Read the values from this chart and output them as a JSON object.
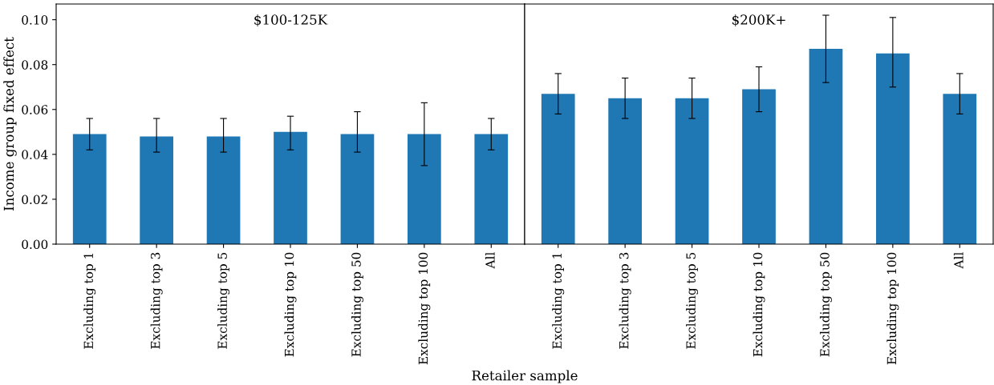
{
  "chart_data": [
    {
      "type": "bar",
      "title": "$100-125K",
      "xlabel": "Retailer sample",
      "ylabel": "Income group fixed effect",
      "categories": [
        "Excluding top 1",
        "Excluding top 3",
        "Excluding top 5",
        "Excluding top 10",
        "Excluding top 50",
        "Excluding top 100",
        "All"
      ],
      "series": [
        {
          "color": "#1f77b4",
          "values": [
            0.049,
            0.048,
            0.048,
            0.05,
            0.049,
            0.049,
            0.049
          ],
          "errors": [
            [
              0.042,
              0.056
            ],
            [
              0.041,
              0.056
            ],
            [
              0.041,
              0.056
            ],
            [
              0.042,
              0.057
            ],
            [
              0.041,
              0.059
            ],
            [
              0.035,
              0.063
            ],
            [
              0.042,
              0.056
            ]
          ]
        }
      ],
      "ylim": [
        0,
        0.107
      ],
      "yticks": [
        {
          "value": 0,
          "label": "0.00"
        },
        {
          "value": 0.02,
          "label": "0.02"
        },
        {
          "value": 0.04,
          "label": "0.04"
        },
        {
          "value": 0.06,
          "label": "0.06"
        },
        {
          "value": 0.08,
          "label": "0.08"
        },
        {
          "value": 0.1,
          "label": "0.10"
        }
      ],
      "grid": false,
      "legend": false
    },
    {
      "type": "bar",
      "title": "$200K+",
      "categories": [
        "Excluding top 1",
        "Excluding top 3",
        "Excluding top 5",
        "Excluding top 10",
        "Excluding top 50",
        "Excluding top 100",
        "All"
      ],
      "series": [
        {
          "color": "#1f77b4",
          "values": [
            0.067,
            0.065,
            0.065,
            0.069,
            0.087,
            0.085,
            0.067
          ],
          "errors": [
            [
              0.058,
              0.076
            ],
            [
              0.056,
              0.074
            ],
            [
              0.056,
              0.074
            ],
            [
              0.059,
              0.079
            ],
            [
              0.072,
              0.102
            ],
            [
              0.07,
              0.101
            ],
            [
              0.058,
              0.076
            ]
          ]
        }
      ],
      "ylim": [
        0,
        0.107
      ],
      "tick_labels": "x",
      "grid": false,
      "legend": false
    }
  ]
}
